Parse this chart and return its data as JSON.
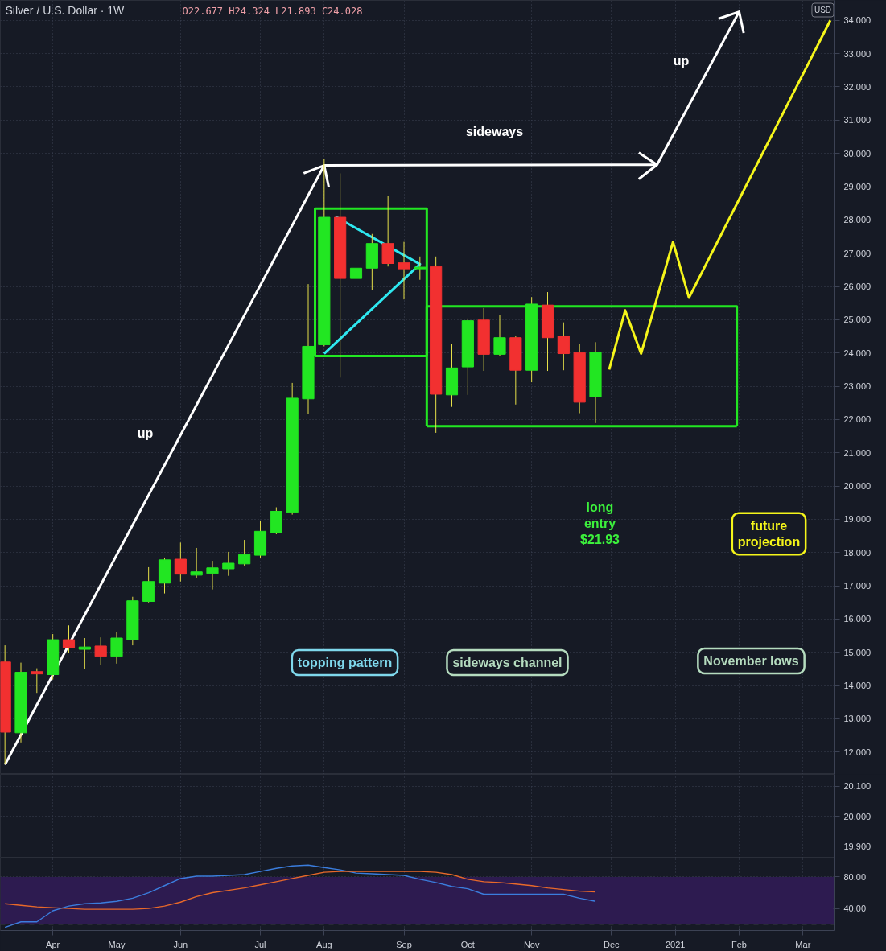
{
  "chart_data": [
    {
      "type": "candlestick",
      "title": "Silver / U.S. Dollar · 1W",
      "subtitle": "O22.677 H24.324 L21.893 C24.028",
      "ylabel": "USD",
      "x": [
        "2020-03-16",
        "2020-03-23",
        "2020-03-30",
        "2020-04-06",
        "2020-04-13",
        "2020-04-20",
        "2020-04-27",
        "2020-05-04",
        "2020-05-11",
        "2020-05-18",
        "2020-05-25",
        "2020-06-01",
        "2020-06-08",
        "2020-06-15",
        "2020-06-22",
        "2020-06-29",
        "2020-07-06",
        "2020-07-13",
        "2020-07-20",
        "2020-07-27",
        "2020-08-03",
        "2020-08-10",
        "2020-08-17",
        "2020-08-24",
        "2020-08-31",
        "2020-09-07",
        "2020-09-14",
        "2020-09-21",
        "2020-09-28",
        "2020-10-05",
        "2020-10-12",
        "2020-10-19",
        "2020-10-26",
        "2020-11-02",
        "2020-11-09",
        "2020-11-16",
        "2020-11-23",
        "2020-11-30"
      ],
      "ohlc": [
        [
          14.71,
          15.21,
          11.64,
          12.6
        ],
        [
          12.58,
          14.69,
          12.29,
          14.4
        ],
        [
          14.42,
          14.52,
          13.78,
          14.35
        ],
        [
          14.33,
          15.55,
          14.18,
          15.38
        ],
        [
          15.38,
          15.81,
          14.97,
          15.14
        ],
        [
          15.09,
          15.43,
          14.49,
          15.16
        ],
        [
          15.19,
          15.45,
          14.61,
          14.88
        ],
        [
          14.88,
          15.62,
          14.66,
          15.43
        ],
        [
          15.38,
          16.67,
          15.21,
          16.55
        ],
        [
          16.53,
          17.56,
          16.5,
          17.13
        ],
        [
          17.08,
          17.85,
          16.77,
          17.78
        ],
        [
          17.8,
          18.3,
          17.13,
          17.35
        ],
        [
          17.32,
          18.14,
          17.23,
          17.42
        ],
        [
          17.37,
          17.75,
          16.89,
          17.54
        ],
        [
          17.51,
          18.02,
          17.3,
          17.68
        ],
        [
          17.66,
          18.38,
          17.61,
          17.94
        ],
        [
          17.92,
          18.94,
          17.85,
          18.64
        ],
        [
          18.59,
          19.36,
          18.55,
          19.24
        ],
        [
          19.21,
          23.1,
          19.14,
          22.64
        ],
        [
          22.62,
          26.07,
          22.16,
          24.2
        ],
        [
          24.25,
          29.84,
          24.2,
          28.08
        ],
        [
          28.08,
          29.4,
          23.26,
          26.24
        ],
        [
          26.24,
          28.25,
          25.64,
          26.55
        ],
        [
          26.55,
          27.58,
          25.88,
          27.29
        ],
        [
          27.29,
          28.73,
          26.6,
          26.69
        ],
        [
          26.71,
          27.34,
          25.61,
          26.53
        ],
        [
          26.53,
          26.9,
          26.2,
          26.58
        ],
        [
          26.6,
          26.9,
          21.6,
          22.76
        ],
        [
          22.74,
          24.27,
          22.38,
          23.55
        ],
        [
          23.58,
          25.04,
          22.74,
          24.97
        ],
        [
          24.99,
          25.35,
          23.46,
          23.96
        ],
        [
          23.96,
          25.13,
          23.9,
          24.46
        ],
        [
          24.46,
          24.5,
          22.45,
          23.48
        ],
        [
          23.48,
          25.68,
          23.12,
          25.47
        ],
        [
          25.44,
          25.83,
          23.46,
          24.46
        ],
        [
          24.51,
          24.92,
          23.48,
          23.98
        ],
        [
          24.01,
          24.27,
          22.19,
          22.52
        ],
        [
          22.677,
          24.324,
          21.893,
          24.028
        ]
      ],
      "colors": [
        "#f23030",
        "#22e622",
        "#f23030",
        "#22e622",
        "#f23030",
        "#22e622",
        "#f23030",
        "#22e622",
        "#22e622",
        "#22e622",
        "#22e622",
        "#f23030",
        "#22e622",
        "#22e622",
        "#22e622",
        "#22e622",
        "#22e622",
        "#22e622",
        "#22e622",
        "#22e622",
        "#22e622",
        "#f23030",
        "#22e622",
        "#22e622",
        "#f23030",
        "#f23030",
        "#22e622",
        "#f23030",
        "#22e622",
        "#22e622",
        "#f23030",
        "#22e622",
        "#f23030",
        "#22e622",
        "#f23030",
        "#f23030",
        "#f23030",
        "#22e622"
      ],
      "series": [
        {
          "type": "line",
          "color": "#ffffff",
          "x": [
            "2020-03-16",
            "2020-08-03",
            "2020-12-27",
            "2021-02-01",
            null,
            "2020-07-25",
            "2020-08-03",
            "2020-08-05",
            null,
            "2020-12-19",
            "2020-12-27",
            "2020-12-19",
            null,
            "2021-01-23",
            "2021-02-01",
            "2021-02-03"
          ],
          "values": [
            11.62,
            29.64,
            29.66,
            34.26,
            null,
            29.4,
            29.64,
            28.99,
            null,
            30.02,
            29.66,
            29.23,
            null,
            34.05,
            34.26,
            33.62
          ]
        },
        {
          "type": "line",
          "color": "#2ee8f0",
          "x": [
            "2020-08-08",
            "2020-09-14",
            "2020-08-03"
          ],
          "values": [
            28.1,
            26.67,
            23.98
          ]
        },
        {
          "type": "line",
          "color": "#22e622",
          "x": [
            "2020-07-30",
            "2020-07-30",
            "2020-09-17",
            "2020-09-17"
          ],
          "values": [
            23.91,
            28.34,
            28.34,
            23.91
          ]
        },
        {
          "type": "line",
          "color": "#22e622",
          "x": [
            "2020-07-30",
            "2020-09-17"
          ],
          "values": [
            23.91,
            23.91
          ]
        },
        {
          "type": "line",
          "color": "#22e622",
          "x": [
            "2020-09-17",
            "2020-09-17",
            "2021-01-31",
            "2021-01-31"
          ],
          "values": [
            21.8,
            25.4,
            25.4,
            21.8
          ]
        },
        {
          "type": "line",
          "color": "#22e622",
          "x": [
            "2020-09-17",
            "2021-01-31"
          ],
          "values": [
            21.8,
            21.8
          ]
        },
        {
          "type": "line",
          "color": "#f5f51a",
          "x": [
            "2020-12-06",
            "2020-12-13",
            "2020-12-20",
            "2021-01-03",
            "2021-01-10",
            "2021-03-13"
          ],
          "values": [
            23.5,
            25.28,
            23.98,
            27.34,
            25.66,
            34.0
          ]
        }
      ],
      "annotations": [
        "up",
        "sideways",
        "up",
        "topping pattern",
        "sideways channel",
        "November lows",
        "long\nentry\n$21.93",
        "future\nprojection"
      ],
      "xlim": [
        "2020-03-14",
        "2021-03-15"
      ],
      "xticks": [
        {
          "value": "2020-04-06",
          "label": null
        },
        {
          "value": "2020-05-04",
          "label": null
        },
        {
          "value": "2020-06-01",
          "label": null
        },
        {
          "value": "2020-07-06",
          "label": null
        },
        {
          "value": "2020-08-03",
          "label": null
        },
        {
          "value": "2020-09-07",
          "label": null
        },
        {
          "value": "2020-10-05",
          "label": null
        },
        {
          "value": "2020-11-02",
          "label": null
        },
        {
          "value": "2020-12-07",
          "label": null
        },
        {
          "value": "2021-01-04",
          "label": null
        },
        {
          "value": "2021-02-01",
          "label": null
        },
        {
          "value": "2021-03-01",
          "label": null
        }
      ],
      "ylim": [
        11.33,
        34.6
      ],
      "yticks": [
        {
          "value": 12,
          "label": "12.000"
        },
        {
          "value": 13,
          "label": "13.000"
        },
        {
          "value": 14,
          "label": "14.000"
        },
        {
          "value": 15,
          "label": "15.000"
        },
        {
          "value": 16,
          "label": "16.000"
        },
        {
          "value": 17,
          "label": "17.000"
        },
        {
          "value": 18,
          "label": "18.000"
        },
        {
          "value": 19,
          "label": "19.000"
        },
        {
          "value": 20,
          "label": "20.000"
        },
        {
          "value": 21,
          "label": "21.000"
        },
        {
          "value": 22,
          "label": "22.000"
        },
        {
          "value": 23,
          "label": "23.000"
        },
        {
          "value": 24,
          "label": "24.000"
        },
        {
          "value": 25,
          "label": "25.000"
        },
        {
          "value": 26,
          "label": "26.000"
        },
        {
          "value": 27,
          "label": "27.000"
        },
        {
          "value": 28,
          "label": "28.000"
        },
        {
          "value": 29,
          "label": "29.000"
        },
        {
          "value": 30,
          "label": "30.000"
        },
        {
          "value": 31,
          "label": "31.000"
        },
        {
          "value": 32,
          "label": "32.000"
        },
        {
          "value": 33,
          "label": "33.000"
        },
        {
          "value": 34,
          "label": "34.000"
        }
      ],
      "grid": true,
      "tick_labels": "y"
    },
    {
      "type": "line",
      "xlim": [
        "2020-03-14",
        "2021-03-15"
      ],
      "xticks": [
        {
          "value": "2020-04-06",
          "label": null
        },
        {
          "value": "2020-05-04",
          "label": null
        },
        {
          "value": "2020-06-01",
          "label": null
        },
        {
          "value": "2020-07-06",
          "label": null
        },
        {
          "value": "2020-08-03",
          "label": null
        },
        {
          "value": "2020-09-07",
          "label": null
        },
        {
          "value": "2020-10-05",
          "label": null
        },
        {
          "value": "2020-11-02",
          "label": null
        },
        {
          "value": "2020-12-07",
          "label": null
        },
        {
          "value": "2021-01-04",
          "label": null
        },
        {
          "value": "2021-02-01",
          "label": null
        },
        {
          "value": "2021-03-01",
          "label": null
        }
      ],
      "ylim": [
        19.86,
        20.14
      ],
      "yticks": [
        {
          "value": 19.9,
          "label": "19.900"
        },
        {
          "value": 20.0,
          "label": "20.000"
        },
        {
          "value": 20.1,
          "label": "20.100"
        }
      ],
      "grid": true,
      "tick_labels": "y"
    },
    {
      "type": "line",
      "x": [
        "2020-03-16",
        "2020-03-23",
        "2020-03-30",
        "2020-04-06",
        "2020-04-13",
        "2020-04-20",
        "2020-04-27",
        "2020-05-04",
        "2020-05-11",
        "2020-05-18",
        "2020-05-25",
        "2020-06-01",
        "2020-06-08",
        "2020-06-15",
        "2020-06-22",
        "2020-06-29",
        "2020-07-06",
        "2020-07-13",
        "2020-07-20",
        "2020-07-27",
        "2020-08-03",
        "2020-08-10",
        "2020-08-17",
        "2020-08-24",
        "2020-08-31",
        "2020-09-07",
        "2020-09-14",
        "2020-09-21",
        "2020-09-28",
        "2020-10-05",
        "2020-10-12",
        "2020-10-19",
        "2020-10-26",
        "2020-11-02",
        "2020-11-09",
        "2020-11-16",
        "2020-11-23",
        "2020-11-30"
      ],
      "series": [
        {
          "color": "#3b7ddd",
          "values": [
            16,
            23,
            23,
            37,
            43,
            46,
            47,
            49,
            53,
            60,
            69,
            78,
            81,
            81,
            82,
            83,
            87,
            91,
            94,
            95,
            92,
            89,
            85,
            84,
            83,
            82,
            77,
            73,
            68,
            65,
            58,
            58,
            58,
            58,
            58,
            58,
            53,
            49
          ]
        },
        {
          "color": "#e8692a",
          "values": [
            46,
            44,
            42,
            41,
            40,
            39,
            39,
            39,
            39,
            40,
            43,
            48,
            55,
            60,
            63,
            66,
            70,
            74,
            78,
            82,
            86,
            87,
            87,
            87,
            87,
            87,
            87,
            86,
            83,
            77,
            74,
            73,
            71,
            69,
            66,
            64,
            62,
            61
          ]
        }
      ],
      "bands": [
        {
          "axis": "y",
          "from": 20,
          "to": 80,
          "color": "#2d1b50"
        }
      ],
      "ref_lines": [
        {
          "axis": "y",
          "value": 20,
          "line_style": "dashed",
          "color": "#787b86"
        }
      ],
      "xlim": [
        "2020-03-14",
        "2021-03-15"
      ],
      "xticks": [
        {
          "value": "2020-04-06",
          "label": "Apr"
        },
        {
          "value": "2020-05-04",
          "label": "May"
        },
        {
          "value": "2020-06-01",
          "label": "Jun"
        },
        {
          "value": "2020-07-06",
          "label": "Jul"
        },
        {
          "value": "2020-08-03",
          "label": "Aug"
        },
        {
          "value": "2020-09-07",
          "label": "Sep"
        },
        {
          "value": "2020-10-05",
          "label": "Oct"
        },
        {
          "value": "2020-11-02",
          "label": "Nov"
        },
        {
          "value": "2020-12-07",
          "label": "Dec"
        },
        {
          "value": "2021-01-04",
          "label": "2021"
        },
        {
          "value": "2021-02-01",
          "label": "Feb"
        },
        {
          "value": "2021-03-01",
          "label": "Mar"
        }
      ],
      "ylim": [
        12,
        104
      ],
      "yticks": [
        {
          "value": 40,
          "label": "40.00"
        },
        {
          "value": 80,
          "label": "80.00"
        }
      ],
      "grid": true
    }
  ]
}
